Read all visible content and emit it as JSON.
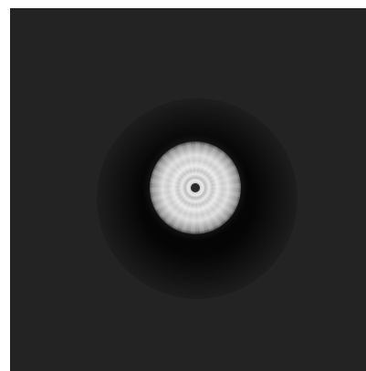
{
  "image": {
    "colors": {
      "background": "#232323",
      "frame_border": "#ffffff",
      "disc_light": "#f2f2f2",
      "disc_mid": "#bdbdbd",
      "center": "#3a3a3a"
    }
  }
}
